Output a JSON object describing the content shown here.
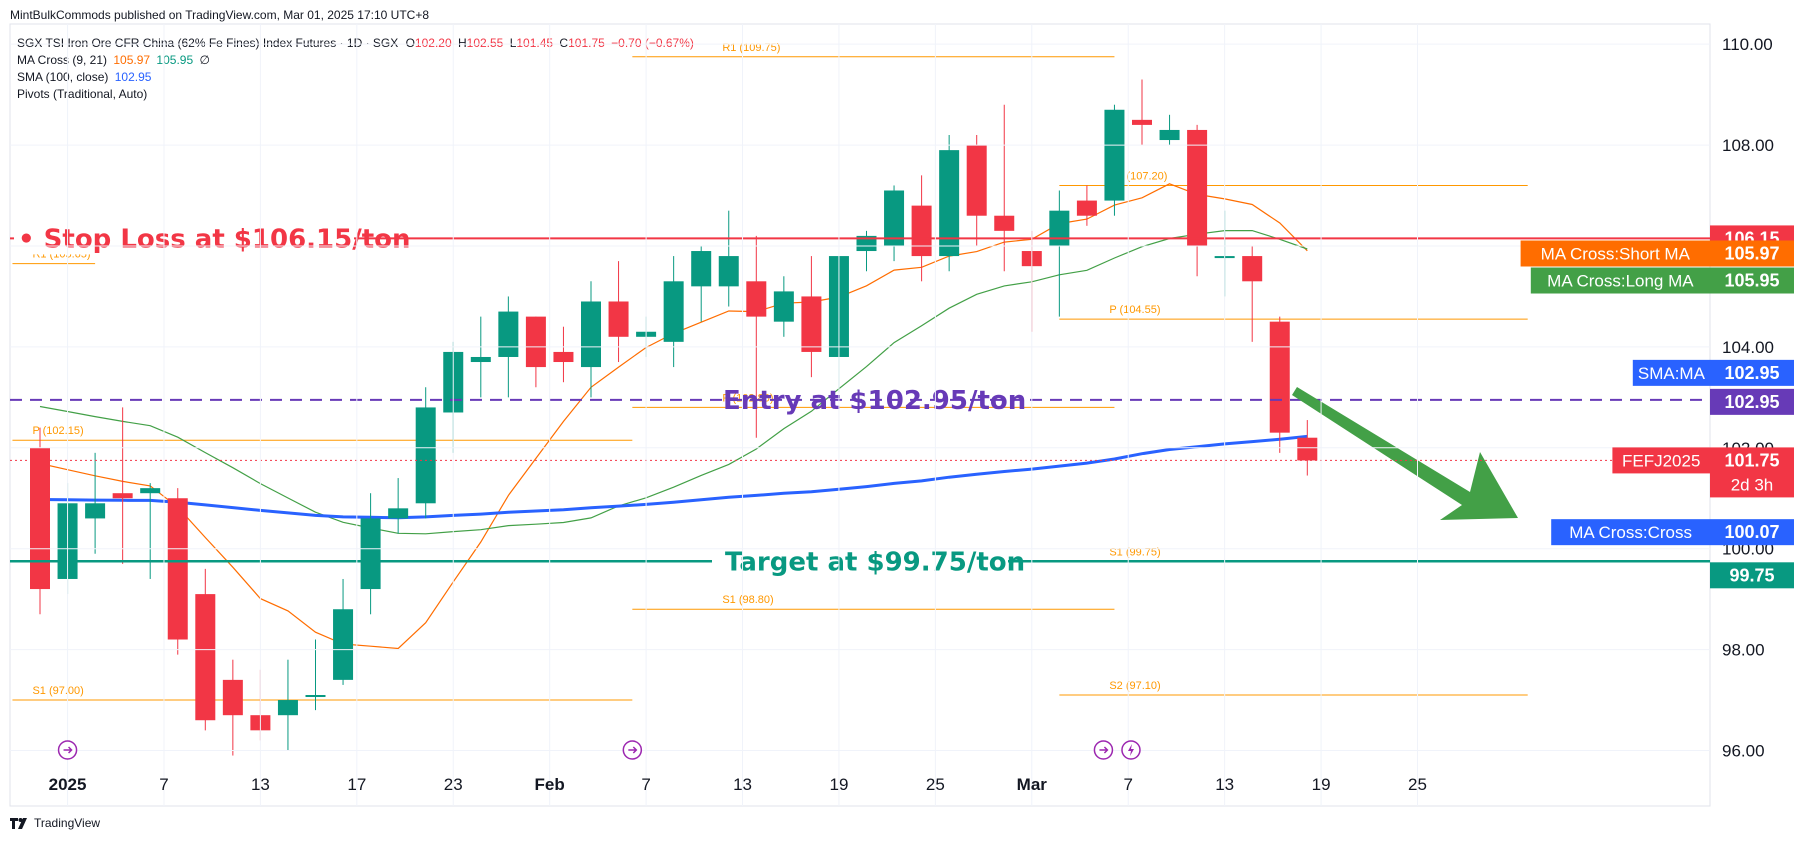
{
  "header": {
    "credit": "MintBulkCommods published on TradingView.com, Mar 01, 2025 17:10 UTC+8"
  },
  "legend": {
    "symbol": "SGX TSI Iron Ore CFR China (62% Fe Fines) Index Futures · 1D · SGX",
    "o_label": "O",
    "o_value": "102.20",
    "h_label": "H",
    "h_value": "102.55",
    "l_label": "L",
    "l_value": "101.45",
    "c_label": "C",
    "c_value": "101.75",
    "change": "−0.70 (−0.67%)",
    "ma_cross_label": "MA Cross (9, 21)",
    "ma_cross_short": "105.97",
    "ma_cross_long": "105.95",
    "ma_cross_extra": "∅",
    "sma_label": "SMA (100, close)",
    "sma_value": "102.95",
    "pivots_label": "Pivots (Traditional, Auto)"
  },
  "footer": {
    "brand": "TradingView"
  },
  "colors": {
    "up": "#089981",
    "down": "#f23645",
    "short_ma": "#ff6d00",
    "long_ma": "#43a047",
    "sma": "#2962ff",
    "pivot": "#ff9800",
    "entry": "#673ab7",
    "arrow": "#43a047"
  },
  "chart_data": {
    "type": "candlestick",
    "ylim": [
      94.9,
      110.4
    ],
    "y_ticks": [
      "96.00",
      "98.00",
      "100.00",
      "102.00",
      "104.00",
      "106.00",
      "108.00",
      "110.00"
    ],
    "x_ticks": [
      "2025",
      "7",
      "13",
      "17",
      "23",
      "Feb",
      "7",
      "13",
      "19",
      "25",
      "Mar",
      "7",
      "13",
      "19",
      "25"
    ],
    "candles": [
      {
        "o": 102.0,
        "h": 102.4,
        "l": 98.7,
        "c": 99.2
      },
      {
        "o": 99.4,
        "h": 101.3,
        "l": 99.1,
        "c": 100.9
      },
      {
        "o": 100.6,
        "h": 101.9,
        "l": 99.9,
        "c": 100.9
      },
      {
        "o": 101.1,
        "h": 102.8,
        "l": 99.7,
        "c": 101.0
      },
      {
        "o": 101.1,
        "h": 101.3,
        "l": 99.4,
        "c": 101.2
      },
      {
        "o": 101.0,
        "h": 101.2,
        "l": 97.9,
        "c": 98.2
      },
      {
        "o": 99.1,
        "h": 99.6,
        "l": 96.4,
        "c": 96.6
      },
      {
        "o": 97.4,
        "h": 97.8,
        "l": 95.9,
        "c": 96.7
      },
      {
        "o": 96.7,
        "h": 97.6,
        "l": 96.2,
        "c": 96.4
      },
      {
        "o": 96.7,
        "h": 97.8,
        "l": 96.0,
        "c": 97.0
      },
      {
        "o": 97.1,
        "h": 98.2,
        "l": 96.8,
        "c": 97.1
      },
      {
        "o": 97.4,
        "h": 99.4,
        "l": 97.3,
        "c": 98.8
      },
      {
        "o": 99.2,
        "h": 101.1,
        "l": 98.7,
        "c": 100.6
      },
      {
        "o": 100.6,
        "h": 101.4,
        "l": 100.3,
        "c": 100.8
      },
      {
        "o": 100.9,
        "h": 103.2,
        "l": 100.6,
        "c": 102.8
      },
      {
        "o": 102.7,
        "h": 104.1,
        "l": 101.9,
        "c": 103.9
      },
      {
        "o": 103.7,
        "h": 104.6,
        "l": 103.0,
        "c": 103.8
      },
      {
        "o": 103.8,
        "h": 105.0,
        "l": 103.0,
        "c": 104.7
      },
      {
        "o": 104.6,
        "h": 104.6,
        "l": 103.2,
        "c": 103.6
      },
      {
        "o": 103.9,
        "h": 104.4,
        "l": 103.3,
        "c": 103.7
      },
      {
        "o": 103.6,
        "h": 105.3,
        "l": 103.0,
        "c": 104.9
      },
      {
        "o": 104.9,
        "h": 105.7,
        "l": 103.7,
        "c": 104.2
      },
      {
        "o": 104.2,
        "h": 104.6,
        "l": 103.8,
        "c": 104.3
      },
      {
        "o": 104.1,
        "h": 105.8,
        "l": 103.6,
        "c": 105.3
      },
      {
        "o": 105.2,
        "h": 106.0,
        "l": 104.5,
        "c": 105.9
      },
      {
        "o": 105.2,
        "h": 106.7,
        "l": 104.8,
        "c": 105.8
      },
      {
        "o": 105.3,
        "h": 106.2,
        "l": 102.2,
        "c": 104.6
      },
      {
        "o": 104.5,
        "h": 105.4,
        "l": 104.2,
        "c": 105.1
      },
      {
        "o": 105.0,
        "h": 105.8,
        "l": 103.4,
        "c": 103.9
      },
      {
        "o": 103.8,
        "h": 105.8,
        "l": 103.1,
        "c": 105.8
      },
      {
        "o": 105.9,
        "h": 106.3,
        "l": 105.5,
        "c": 106.2
      },
      {
        "o": 106.0,
        "h": 107.2,
        "l": 105.7,
        "c": 107.1
      },
      {
        "o": 106.8,
        "h": 107.4,
        "l": 105.3,
        "c": 105.8
      },
      {
        "o": 105.8,
        "h": 108.2,
        "l": 105.5,
        "c": 107.9
      },
      {
        "o": 108.0,
        "h": 108.2,
        "l": 106.0,
        "c": 106.6
      },
      {
        "o": 106.6,
        "h": 108.8,
        "l": 105.5,
        "c": 106.3
      },
      {
        "o": 105.9,
        "h": 106.3,
        "l": 104.3,
        "c": 105.6
      },
      {
        "o": 106.0,
        "h": 107.1,
        "l": 104.6,
        "c": 106.7
      },
      {
        "o": 106.9,
        "h": 107.2,
        "l": 106.4,
        "c": 106.6
      },
      {
        "o": 106.9,
        "h": 108.8,
        "l": 106.6,
        "c": 108.7
      },
      {
        "o": 108.5,
        "h": 109.3,
        "l": 108.0,
        "c": 108.4
      },
      {
        "o": 108.1,
        "h": 108.6,
        "l": 108.0,
        "c": 108.3
      },
      {
        "o": 108.3,
        "h": 108.4,
        "l": 105.4,
        "c": 106.0
      },
      {
        "o": 105.8,
        "h": 106.7,
        "l": 105.0,
        "c": 105.8
      },
      {
        "o": 105.8,
        "h": 106.0,
        "l": 104.1,
        "c": 105.3
      },
      {
        "o": 104.5,
        "h": 104.6,
        "l": 101.9,
        "c": 102.3
      },
      {
        "o": 102.2,
        "h": 102.55,
        "l": 101.45,
        "c": 101.75
      }
    ],
    "pivot_labels": [
      "R1 (109.75)",
      "R1 (107.20)",
      "R1 (105.65)",
      "P (104.55)",
      "P (102.80)",
      "P (102.15)",
      "S1 (99.75)",
      "S1 (98.80)",
      "S1 (97.00)",
      "S2 (97.10)"
    ],
    "annotations": {
      "stop_loss": "Stop Loss at $106.15/ton",
      "entry": "Entry at $102.95/ton",
      "target": "Target at $99.75/ton"
    },
    "price_labels": {
      "stop": "106.15",
      "short_ma_tag": "MA Cross:Short MA",
      "short_ma": "105.97",
      "long_ma_tag": "MA Cross:Long MA",
      "long_ma": "105.95",
      "sma_tag": "SMA:MA",
      "sma": "102.95",
      "entry": "102.95",
      "symbol_tag": "FEFJ2025",
      "last": "101.75",
      "countdown": "2d 3h",
      "cross_tag": "MA Cross:Cross",
      "cross": "100.07",
      "target": "99.75"
    }
  }
}
